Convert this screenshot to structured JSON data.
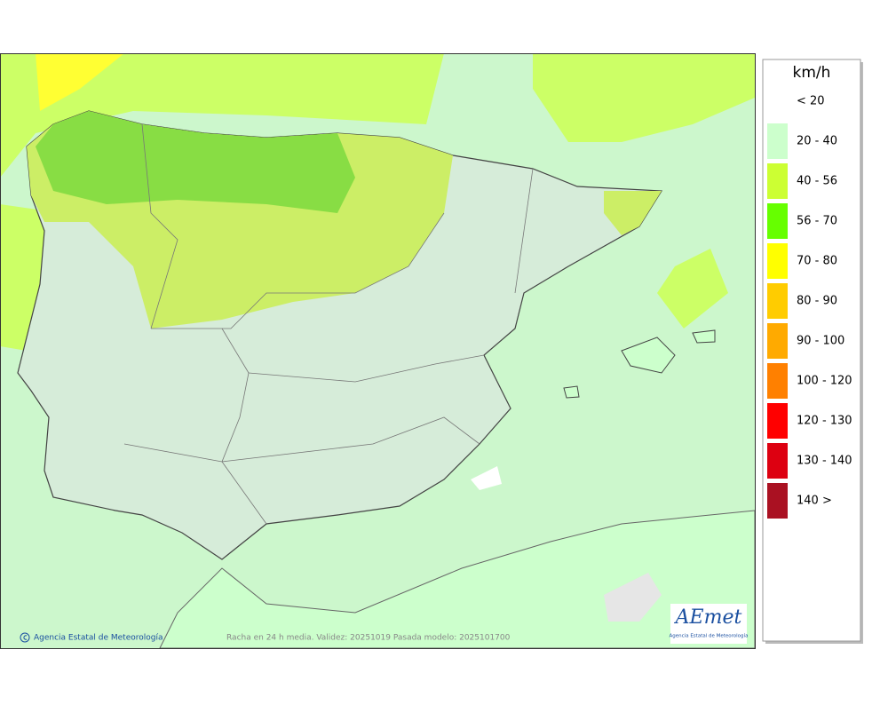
{
  "legend": {
    "title": "km/h",
    "items": [
      {
        "label": "< 20",
        "color": "#ffffff"
      },
      {
        "label": "20 - 40",
        "color": "#ccffcc"
      },
      {
        "label": "40 - 56",
        "color": "#ccff33"
      },
      {
        "label": "56 - 70",
        "color": "#66ff00"
      },
      {
        "label": "70 - 80",
        "color": "#ffff00"
      },
      {
        "label": "80 - 90",
        "color": "#ffcc00"
      },
      {
        "label": "90 - 100",
        "color": "#ffaa00"
      },
      {
        "label": "100 - 120",
        "color": "#ff8000"
      },
      {
        "label": "120 - 130",
        "color": "#ff0000"
      },
      {
        "label": "130 - 140",
        "color": "#dd0011"
      },
      {
        "label": "140 >",
        "color": "#aa1122"
      }
    ]
  },
  "footer": {
    "credit": "Agencia Estatal de Meteorología",
    "caption": "Racha en 24 h media. Validez: 20251019 Pasada modelo: 2025101700"
  },
  "logo": {
    "name": "AEmet",
    "subtitle": "Agencia Estatal de Meteorología"
  }
}
